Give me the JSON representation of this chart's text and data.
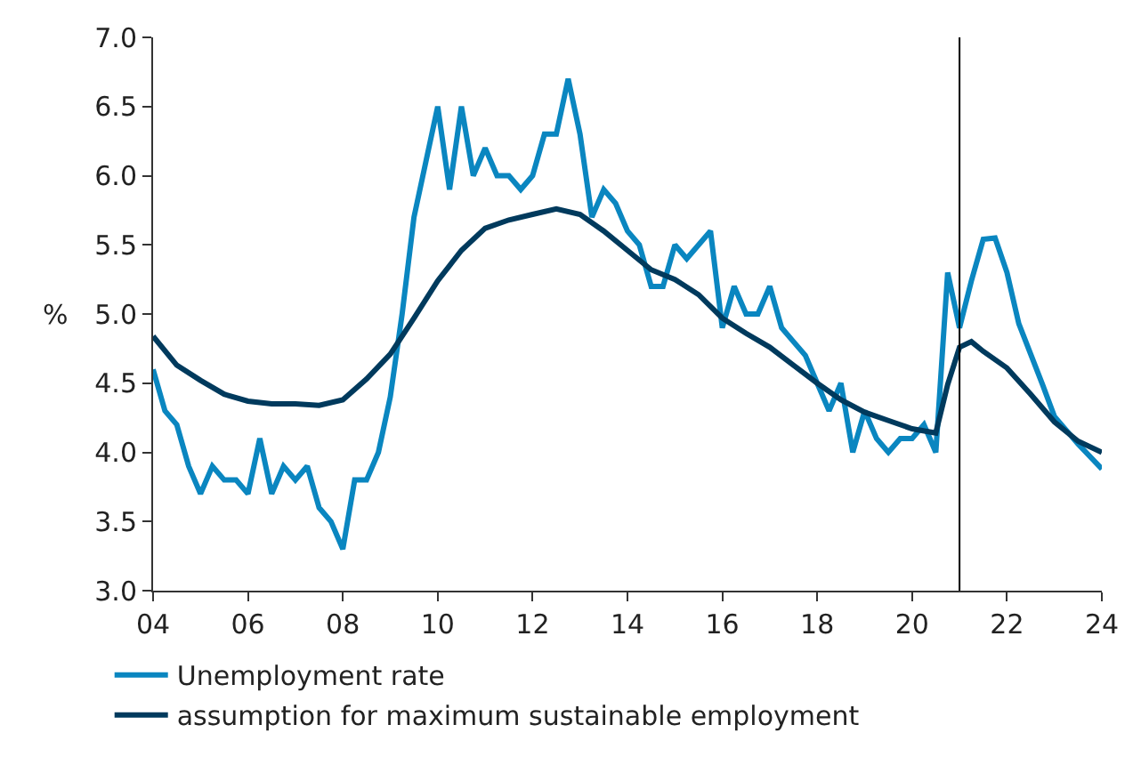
{
  "chart_data": {
    "type": "line",
    "ylabel": "%",
    "xlim": [
      2004,
      2024
    ],
    "ylim": [
      3.0,
      7.0
    ],
    "xticks": [
      {
        "value": 2004,
        "label": "04"
      },
      {
        "value": 2006,
        "label": "06"
      },
      {
        "value": 2008,
        "label": "08"
      },
      {
        "value": 2010,
        "label": "10"
      },
      {
        "value": 2012,
        "label": "12"
      },
      {
        "value": 2014,
        "label": "14"
      },
      {
        "value": 2016,
        "label": "16"
      },
      {
        "value": 2018,
        "label": "18"
      },
      {
        "value": 2020,
        "label": "20"
      },
      {
        "value": 2022,
        "label": "22"
      },
      {
        "value": 2024,
        "label": "24"
      }
    ],
    "yticks": [
      {
        "value": 3.0,
        "label": "3.0"
      },
      {
        "value": 3.5,
        "label": "3.5"
      },
      {
        "value": 4.0,
        "label": "4.0"
      },
      {
        "value": 4.5,
        "label": "4.5"
      },
      {
        "value": 5.0,
        "label": "5.0"
      },
      {
        "value": 5.5,
        "label": "5.5"
      },
      {
        "value": 6.0,
        "label": "6.0"
      },
      {
        "value": 6.5,
        "label": "6.5"
      },
      {
        "value": 7.0,
        "label": "7.0"
      }
    ],
    "legend": "bottom",
    "marker": "none",
    "line_style": "solid",
    "ref_lines": [
      {
        "axis": "x",
        "value": 2021,
        "color": "#000000"
      }
    ],
    "series": [
      {
        "name": "Unemployment rate",
        "color": "#0a86c0",
        "x": [
          2004,
          2004.25,
          2004.5,
          2004.75,
          2005,
          2005.25,
          2005.5,
          2005.75,
          2006,
          2006.25,
          2006.5,
          2006.75,
          2007,
          2007.25,
          2007.5,
          2007.75,
          2008,
          2008.25,
          2008.5,
          2008.75,
          2009,
          2009.25,
          2009.5,
          2009.75,
          2010,
          2010.25,
          2010.5,
          2010.75,
          2011,
          2011.25,
          2011.5,
          2011.75,
          2012,
          2012.25,
          2012.5,
          2012.75,
          2013,
          2013.25,
          2013.5,
          2013.75,
          2014,
          2014.25,
          2014.5,
          2014.75,
          2015,
          2015.25,
          2015.5,
          2015.75,
          2016,
          2016.25,
          2016.5,
          2016.75,
          2017,
          2017.25,
          2017.5,
          2017.75,
          2018,
          2018.25,
          2018.5,
          2018.75,
          2019,
          2019.25,
          2019.5,
          2019.75,
          2020,
          2020.25,
          2020.5,
          2020.75,
          2021,
          2021.25,
          2021.5,
          2021.75,
          2022,
          2022.25,
          2022.5,
          2022.75,
          2023,
          2023.25,
          2023.5,
          2024
        ],
        "values": [
          4.6,
          4.3,
          4.2,
          3.9,
          3.7,
          3.9,
          3.8,
          3.8,
          3.7,
          4.1,
          3.7,
          3.9,
          3.8,
          3.9,
          3.6,
          3.5,
          3.3,
          3.8,
          3.8,
          4.0,
          4.4,
          5.0,
          5.7,
          6.1,
          6.5,
          5.9,
          6.5,
          6.0,
          6.2,
          6.0,
          6.0,
          5.9,
          6.0,
          6.3,
          6.3,
          6.7,
          6.3,
          5.7,
          5.9,
          5.8,
          5.6,
          5.5,
          5.2,
          5.2,
          5.5,
          5.4,
          5.5,
          5.6,
          4.9,
          5.2,
          5.0,
          5.0,
          5.2,
          4.9,
          4.8,
          4.7,
          4.5,
          4.3,
          4.5,
          4.0,
          4.3,
          4.1,
          4.0,
          4.1,
          4.1,
          4.2,
          4.0,
          5.3,
          4.9,
          5.24,
          5.54,
          5.55,
          5.3,
          4.93,
          4.71,
          4.49,
          4.26,
          4.16,
          4.06,
          3.88
        ]
      },
      {
        "name": "assumption for maximum sustainable employment",
        "color": "#003a5d",
        "x": [
          2004,
          2004.5,
          2005,
          2005.5,
          2006,
          2006.5,
          2007,
          2007.5,
          2008,
          2008.5,
          2009,
          2009.5,
          2010,
          2010.5,
          2011,
          2011.5,
          2012,
          2012.5,
          2013,
          2013.5,
          2014,
          2014.5,
          2015,
          2015.5,
          2016,
          2016.5,
          2017,
          2017.5,
          2018,
          2018.5,
          2019,
          2019.5,
          2020,
          2020.5,
          2020.75,
          2021,
          2021.25,
          2021.5,
          2022,
          2022.5,
          2023,
          2023.5,
          2024
        ],
        "values": [
          4.84,
          4.63,
          4.52,
          4.42,
          4.37,
          4.35,
          4.35,
          4.34,
          4.38,
          4.53,
          4.71,
          4.97,
          5.24,
          5.46,
          5.62,
          5.68,
          5.72,
          5.76,
          5.72,
          5.6,
          5.46,
          5.32,
          5.25,
          5.14,
          4.97,
          4.86,
          4.76,
          4.63,
          4.5,
          4.38,
          4.29,
          4.23,
          4.17,
          4.14,
          4.49,
          4.76,
          4.8,
          4.73,
          4.61,
          4.42,
          4.22,
          4.08,
          4.0
        ]
      }
    ]
  }
}
